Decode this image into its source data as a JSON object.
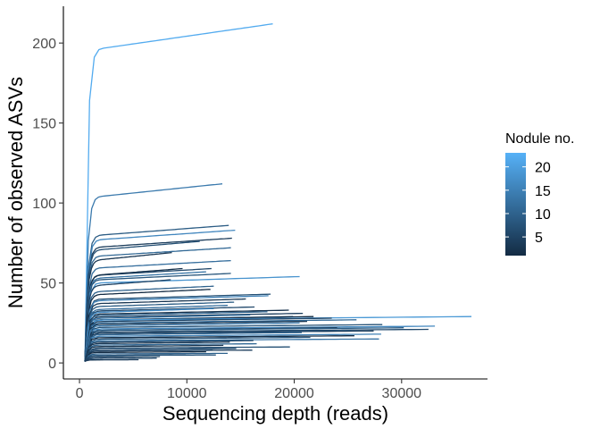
{
  "chart_data": {
    "type": "line",
    "title": "",
    "xlabel": "Sequencing depth (reads)",
    "ylabel": "Number of observed ASVs",
    "xlim": [
      -1500,
      38000
    ],
    "ylim": [
      -10,
      223
    ],
    "x_ticks": [
      0,
      10000,
      20000,
      30000
    ],
    "x_tick_labels": [
      "0",
      "10000",
      "20000",
      "30000"
    ],
    "y_ticks": [
      0,
      50,
      100,
      150,
      200
    ],
    "y_tick_labels": [
      "0",
      "50",
      "100",
      "150",
      "200"
    ],
    "grid": false,
    "legend": {
      "title": "Nodule no.",
      "placement": "right",
      "type": "colorbar",
      "range": [
        1,
        23
      ],
      "ticks": [
        5,
        10,
        15,
        20
      ],
      "tick_labels": [
        "5",
        "10",
        "15",
        "20"
      ],
      "color_low": "#132b43",
      "color_high": "#56b1f7"
    },
    "series": [
      {
        "nodule": 22,
        "depth": 18000,
        "asvs": 212
      },
      {
        "nodule": 14,
        "depth": 13300,
        "asvs": 112
      },
      {
        "nodule": 9,
        "depth": 13900,
        "asvs": 86
      },
      {
        "nodule": 16,
        "depth": 14500,
        "asvs": 83
      },
      {
        "nodule": 4,
        "depth": 14200,
        "asvs": 78
      },
      {
        "nodule": 7,
        "depth": 11200,
        "asvs": 76
      },
      {
        "nodule": 11,
        "depth": 14100,
        "asvs": 72
      },
      {
        "nodule": 3,
        "depth": 8600,
        "asvs": 69
      },
      {
        "nodule": 12,
        "depth": 14100,
        "asvs": 64
      },
      {
        "nodule": 6,
        "depth": 12300,
        "asvs": 59
      },
      {
        "nodule": 2,
        "depth": 9600,
        "asvs": 59
      },
      {
        "nodule": 13,
        "depth": 11800,
        "asvs": 57
      },
      {
        "nodule": 8,
        "depth": 14100,
        "asvs": 56
      },
      {
        "nodule": 18,
        "depth": 20500,
        "asvs": 54
      },
      {
        "nodule": 5,
        "depth": 8500,
        "asvs": 52
      },
      {
        "nodule": 10,
        "depth": 12500,
        "asvs": 48
      },
      {
        "nodule": 1,
        "depth": 12200,
        "asvs": 46
      },
      {
        "nodule": 7,
        "depth": 17800,
        "asvs": 43
      },
      {
        "nodule": 15,
        "depth": 17600,
        "asvs": 42
      },
      {
        "nodule": 3,
        "depth": 15500,
        "asvs": 40
      },
      {
        "nodule": 9,
        "depth": 14400,
        "asvs": 38
      },
      {
        "nodule": 12,
        "depth": 13800,
        "asvs": 36
      },
      {
        "nodule": 6,
        "depth": 16300,
        "asvs": 35
      },
      {
        "nodule": 17,
        "depth": 12500,
        "asvs": 34
      },
      {
        "nodule": 2,
        "depth": 19500,
        "asvs": 33
      },
      {
        "nodule": 10,
        "depth": 17500,
        "asvs": 32
      },
      {
        "nodule": 4,
        "depth": 20800,
        "asvs": 31
      },
      {
        "nodule": 13,
        "depth": 15900,
        "asvs": 30
      },
      {
        "nodule": 8,
        "depth": 19900,
        "asvs": 29
      },
      {
        "nodule": 1,
        "depth": 21800,
        "asvs": 29
      },
      {
        "nodule": 19,
        "depth": 36500,
        "asvs": 29
      },
      {
        "nodule": 5,
        "depth": 23500,
        "asvs": 28
      },
      {
        "nodule": 11,
        "depth": 25800,
        "asvs": 27
      },
      {
        "nodule": 3,
        "depth": 21200,
        "asvs": 26
      },
      {
        "nodule": 14,
        "depth": 20500,
        "asvs": 25
      },
      {
        "nodule": 7,
        "depth": 28200,
        "asvs": 24
      },
      {
        "nodule": 16,
        "depth": 33100,
        "asvs": 23
      },
      {
        "nodule": 2,
        "depth": 24000,
        "asvs": 22
      },
      {
        "nodule": 9,
        "depth": 30200,
        "asvs": 22
      },
      {
        "nodule": 6,
        "depth": 32500,
        "asvs": 21
      },
      {
        "nodule": 12,
        "depth": 25300,
        "asvs": 20
      },
      {
        "nodule": 4,
        "depth": 27400,
        "asvs": 20
      },
      {
        "nodule": 10,
        "depth": 20700,
        "asvs": 19
      },
      {
        "nodule": 15,
        "depth": 28100,
        "asvs": 18
      },
      {
        "nodule": 1,
        "depth": 25600,
        "asvs": 17
      },
      {
        "nodule": 8,
        "depth": 21500,
        "asvs": 16
      },
      {
        "nodule": 13,
        "depth": 27900,
        "asvs": 15
      },
      {
        "nodule": 5,
        "depth": 16200,
        "asvs": 14
      },
      {
        "nodule": 3,
        "depth": 14000,
        "asvs": 13
      },
      {
        "nodule": 11,
        "depth": 16500,
        "asvs": 12
      },
      {
        "nodule": 2,
        "depth": 13400,
        "asvs": 11
      },
      {
        "nodule": 7,
        "depth": 19600,
        "asvs": 10
      },
      {
        "nodule": 6,
        "depth": 14600,
        "asvs": 9
      },
      {
        "nodule": 9,
        "depth": 12400,
        "asvs": 8
      },
      {
        "nodule": 4,
        "depth": 16100,
        "asvs": 8
      },
      {
        "nodule": 1,
        "depth": 11800,
        "asvs": 7
      },
      {
        "nodule": 10,
        "depth": 13800,
        "asvs": 6
      },
      {
        "nodule": 3,
        "depth": 9900,
        "asvs": 5
      },
      {
        "nodule": 8,
        "depth": 12700,
        "asvs": 5
      },
      {
        "nodule": 5,
        "depth": 7500,
        "asvs": 4
      },
      {
        "nodule": 2,
        "depth": 5200,
        "asvs": 3
      },
      {
        "nodule": 6,
        "depth": 7200,
        "asvs": 3
      },
      {
        "nodule": 1,
        "depth": 2200,
        "asvs": 2
      },
      {
        "nodule": 4,
        "depth": 5500,
        "asvs": 2
      }
    ]
  }
}
